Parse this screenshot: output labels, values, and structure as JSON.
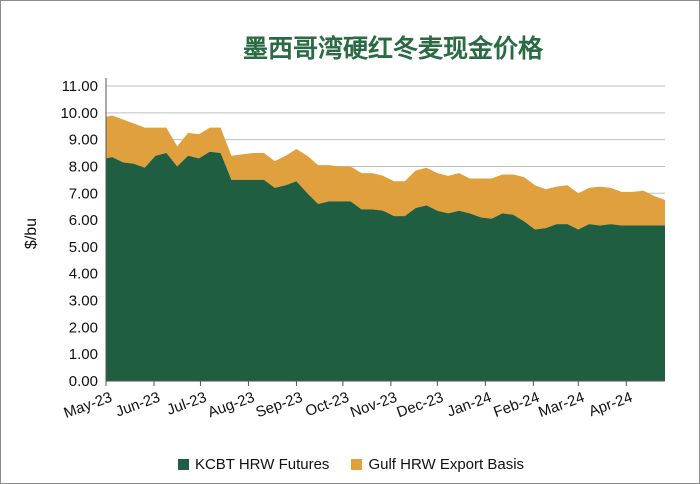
{
  "chart_data": {
    "type": "area",
    "stacked": true,
    "title": "墨西哥湾硬红冬麦现金价格",
    "ylabel": "$/bu",
    "xlabel": "",
    "ylim": [
      0,
      11
    ],
    "yticks": [
      "0.00",
      "1.00",
      "2.00",
      "3.00",
      "4.00",
      "5.00",
      "6.00",
      "7.00",
      "8.00",
      "9.00",
      "10.00",
      "11.00"
    ],
    "grid": "horizontal",
    "legend_position": "bottom",
    "x_tick_labels": [
      "May-23",
      "Jun-23",
      "Jul-23",
      "Aug-23",
      "Sep-23",
      "Oct-23",
      "Nov-23",
      "Dec-23",
      "Jan-24",
      "Feb-24",
      "Mar-24",
      "Apr-24"
    ],
    "x": [
      "2023-05-01",
      "2023-05-05",
      "2023-05-12",
      "2023-05-19",
      "2023-05-26",
      "2023-06-02",
      "2023-06-09",
      "2023-06-16",
      "2023-06-23",
      "2023-06-30",
      "2023-07-07",
      "2023-07-14",
      "2023-07-21",
      "2023-07-28",
      "2023-08-04",
      "2023-08-11",
      "2023-08-18",
      "2023-08-25",
      "2023-09-01",
      "2023-09-08",
      "2023-09-15",
      "2023-09-22",
      "2023-09-29",
      "2023-10-06",
      "2023-10-13",
      "2023-10-20",
      "2023-10-27",
      "2023-11-03",
      "2023-11-10",
      "2023-11-17",
      "2023-11-24",
      "2023-12-01",
      "2023-12-08",
      "2023-12-15",
      "2023-12-22",
      "2023-12-29",
      "2024-01-05",
      "2024-01-12",
      "2024-01-19",
      "2024-01-26",
      "2024-02-02",
      "2024-02-09",
      "2024-02-16",
      "2024-02-23",
      "2024-03-01",
      "2024-03-08",
      "2024-03-15",
      "2024-03-22",
      "2024-03-29",
      "2024-04-05",
      "2024-04-12",
      "2024-04-19",
      "2024-04-26"
    ],
    "series": [
      {
        "name": "KCBT HRW Futures",
        "color": "#1f5e40",
        "values": [
          8.3,
          8.35,
          8.15,
          8.1,
          7.95,
          8.4,
          8.5,
          8.0,
          8.4,
          8.3,
          8.55,
          8.5,
          7.5,
          7.5,
          7.5,
          7.5,
          7.2,
          7.3,
          7.45,
          7.0,
          6.6,
          6.7,
          6.7,
          6.7,
          6.4,
          6.4,
          6.35,
          6.15,
          6.15,
          6.45,
          6.55,
          6.35,
          6.25,
          6.35,
          6.25,
          6.1,
          6.05,
          6.25,
          6.2,
          5.95,
          5.65,
          5.7,
          5.85,
          5.85,
          5.65,
          5.85,
          5.8,
          5.85,
          5.8,
          5.8,
          5.8,
          5.8,
          5.8
        ]
      },
      {
        "name": "Gulf HRW Export Basis",
        "color": "#e0a03e",
        "values": [
          1.55,
          1.55,
          1.6,
          1.5,
          1.5,
          1.05,
          0.95,
          0.75,
          0.85,
          0.9,
          0.9,
          0.95,
          0.9,
          0.95,
          1.0,
          1.0,
          1.0,
          1.1,
          1.2,
          1.4,
          1.45,
          1.35,
          1.3,
          1.3,
          1.35,
          1.35,
          1.3,
          1.3,
          1.3,
          1.4,
          1.4,
          1.4,
          1.4,
          1.4,
          1.3,
          1.45,
          1.5,
          1.45,
          1.5,
          1.65,
          1.65,
          1.45,
          1.4,
          1.45,
          1.35,
          1.35,
          1.45,
          1.35,
          1.25,
          1.25,
          1.3,
          1.1,
          0.95
        ]
      }
    ]
  }
}
